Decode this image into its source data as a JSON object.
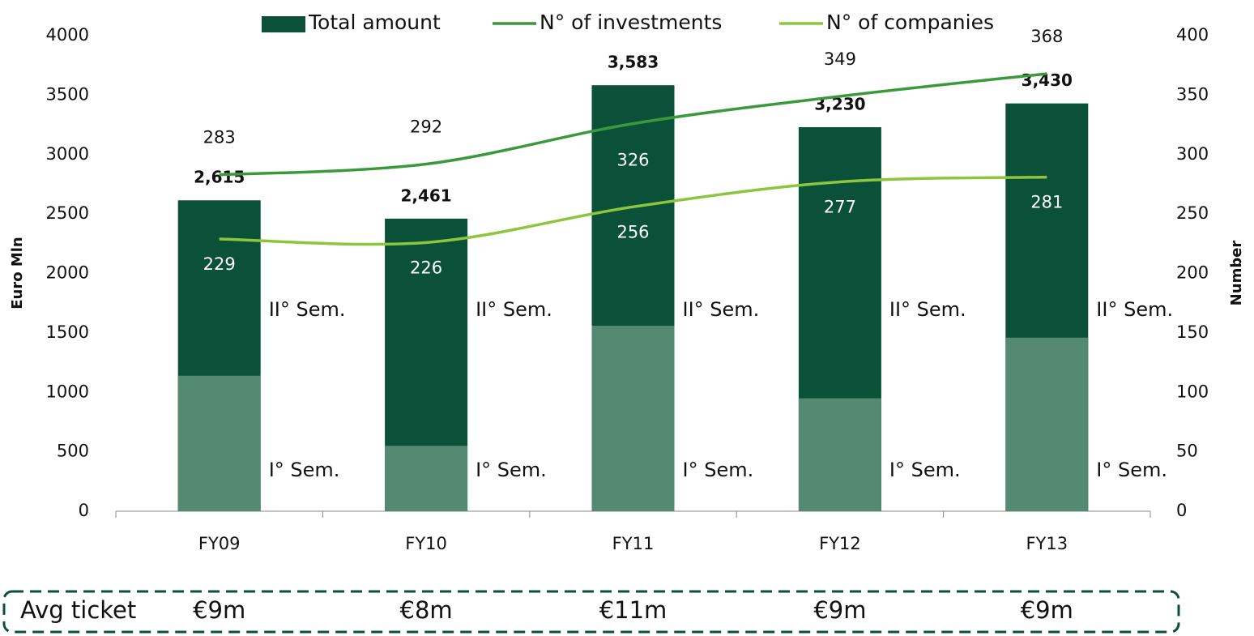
{
  "chart_data": {
    "type": "bar",
    "categories": [
      "FY09",
      "FY10",
      "FY11",
      "FY12",
      "FY13"
    ],
    "series": [
      {
        "name": "Total amount",
        "color": "#0b5139",
        "values": [
          2615,
          2461,
          3583,
          3230,
          3430
        ],
        "value_labels": [
          "2,615",
          "2,461",
          "3,583",
          "3,230",
          "3,430"
        ]
      },
      {
        "name": "N° of investments",
        "color": "#3a9a3a",
        "axis": "y2",
        "type": "line",
        "values": [
          283,
          292,
          326,
          349,
          368
        ]
      },
      {
        "name": "N° of companies",
        "color": "#8cc63f",
        "axis": "y2",
        "type": "line",
        "values": [
          229,
          226,
          256,
          277,
          281
        ]
      }
    ],
    "first_semester": {
      "color": "#548a72",
      "values": [
        1140,
        550,
        1560,
        950,
        1460
      ]
    },
    "segment_labels": [
      "I° Sem.",
      "II° Sem."
    ],
    "ylabel": "Euro Mln",
    "y2label": "Number",
    "ylim": [
      0,
      4000
    ],
    "yticks": [
      0,
      500,
      1000,
      1500,
      2000,
      2500,
      3000,
      3500,
      4000
    ],
    "y2lim": [
      0,
      400
    ],
    "y2ticks": [
      0,
      50,
      100,
      150,
      200,
      250,
      300,
      350,
      400
    ],
    "legend": "top",
    "avg_ticket": {
      "label": "Avg ticket",
      "values": [
        "€9m",
        "€8m",
        "€11m",
        "€9m",
        "€9m"
      ]
    }
  }
}
